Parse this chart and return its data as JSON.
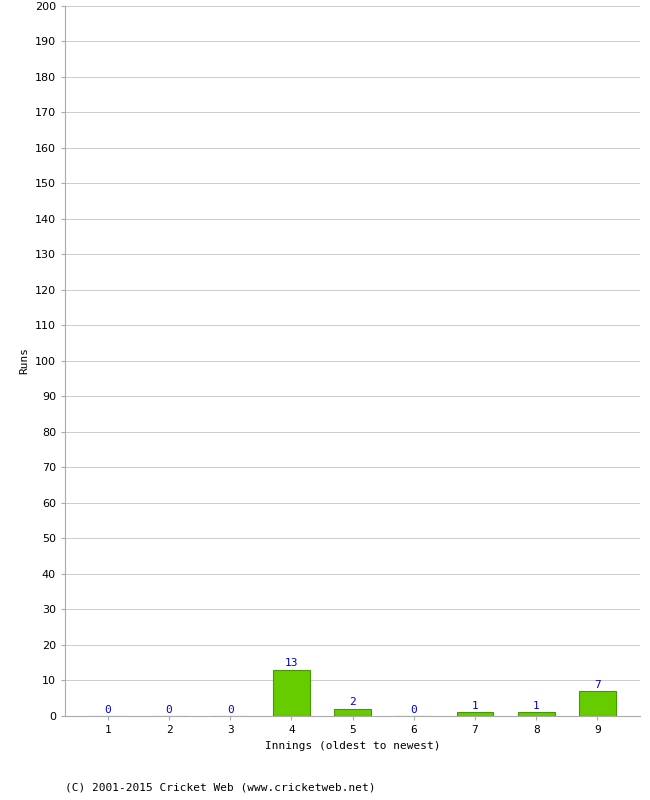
{
  "xlabel": "Innings (oldest to newest)",
  "ylabel": "Runs",
  "categories": [
    "1",
    "2",
    "3",
    "4",
    "5",
    "6",
    "7",
    "8",
    "9"
  ],
  "values": [
    0,
    0,
    0,
    13,
    2,
    0,
    1,
    1,
    7
  ],
  "bar_color": "#66cc00",
  "bar_edge_color": "#449900",
  "label_color": "#0000cc",
  "ylim": [
    0,
    200
  ],
  "yticks": [
    0,
    10,
    20,
    30,
    40,
    50,
    60,
    70,
    80,
    90,
    100,
    110,
    120,
    130,
    140,
    150,
    160,
    170,
    180,
    190,
    200
  ],
  "background_color": "#ffffff",
  "grid_color": "#cccccc",
  "footer": "(C) 2001-2015 Cricket Web (www.cricketweb.net)",
  "label_fontsize": 8,
  "axis_label_fontsize": 8,
  "tick_fontsize": 8,
  "footer_fontsize": 8
}
